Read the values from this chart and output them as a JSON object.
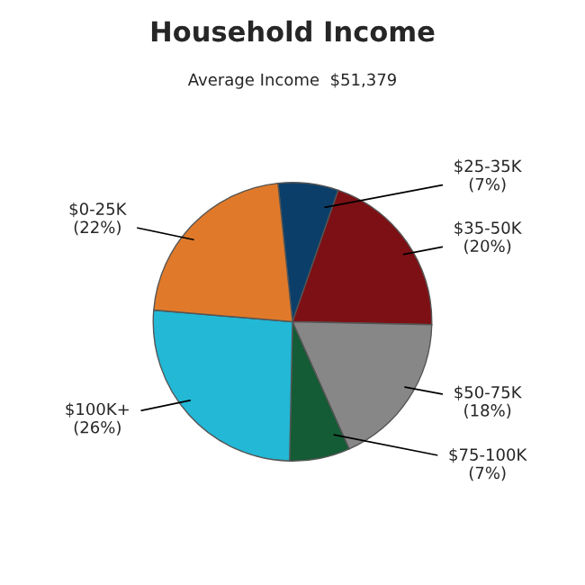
{
  "chart_data": {
    "type": "pie",
    "title": "Household Income",
    "subtitle": "Average Income  $51,379",
    "categories": [
      "$25-35K",
      "$35-50K",
      "$50-75K",
      "$75-100K",
      "$100K+",
      "$0-25K"
    ],
    "values": [
      7,
      20,
      18,
      7,
      26,
      22
    ],
    "value_labels": [
      "(7%)",
      "(20%)",
      "(18%)",
      "(7%)",
      "(26%)",
      "(22%)"
    ],
    "colors": [
      "#0b3f6a",
      "#7d1015",
      "#878787",
      "#145c35",
      "#22b8d6",
      "#e07a2a"
    ]
  }
}
